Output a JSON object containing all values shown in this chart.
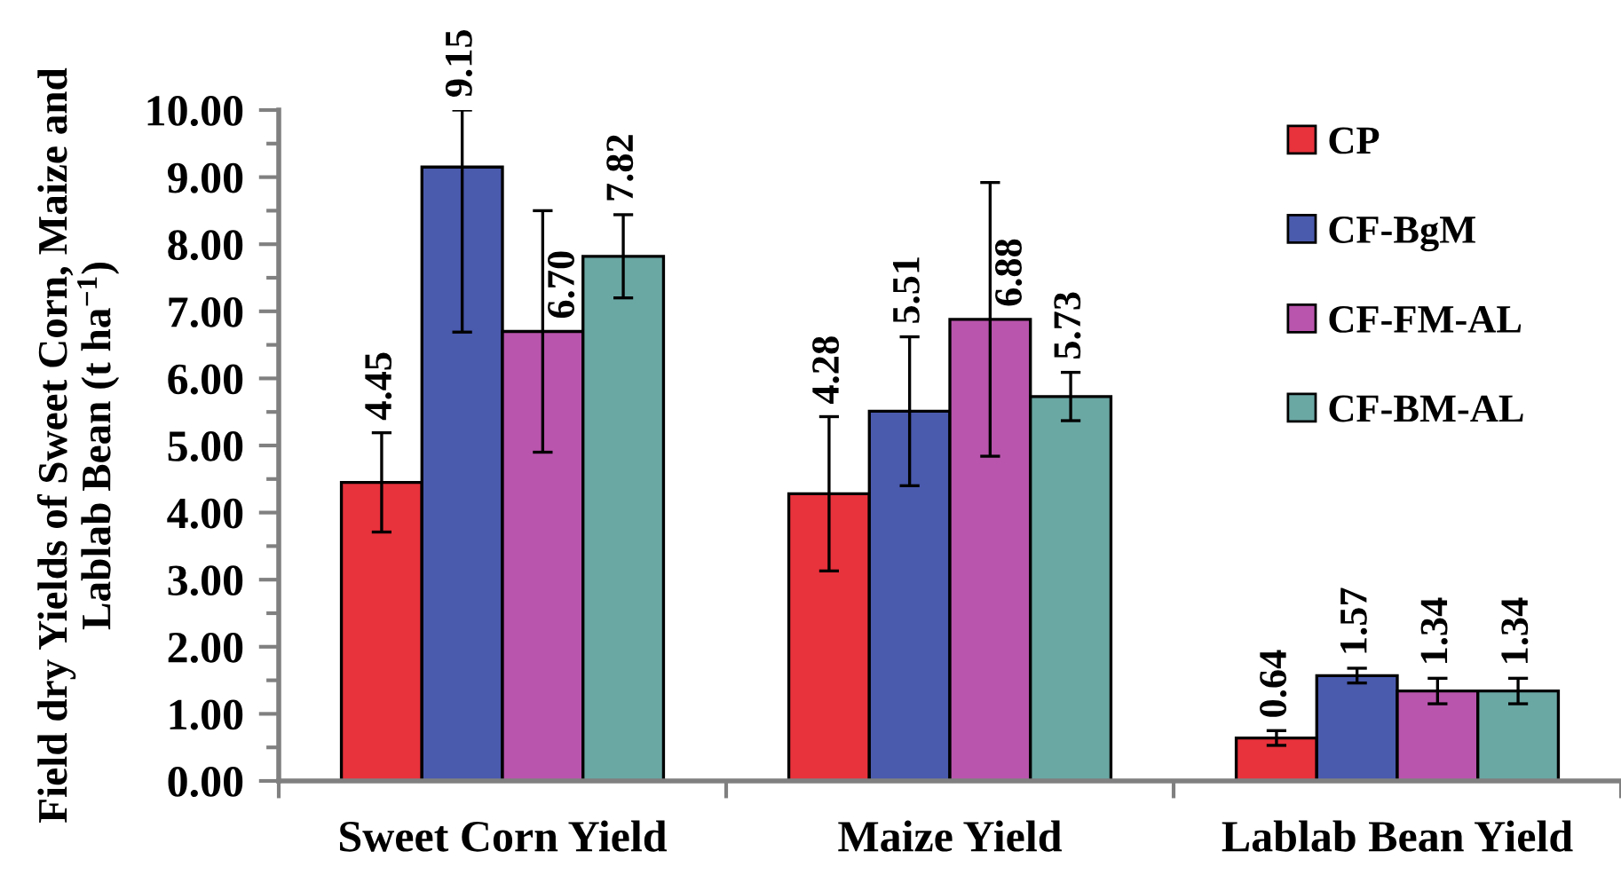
{
  "chart_data": {
    "type": "bar",
    "ylabel": "Field dry Yields of Sweet Corn, Maize and\nLablab Bean (t ha$^{−1}$)",
    "categories": [
      "Sweet Corn Yield",
      "Maize Yield",
      "Lablab Bean Yield"
    ],
    "series": [
      {
        "name": "CP",
        "color": "#e8323c",
        "values": [
          4.45,
          4.28,
          0.64
        ],
        "errors": [
          0.74,
          1.15,
          0.11
        ],
        "value_labels": [
          "4.45",
          "4.28",
          "0.64"
        ]
      },
      {
        "name": "CF-BgM",
        "color": "#4a5aad",
        "values": [
          9.15,
          5.51,
          1.57
        ],
        "errors": [
          [
            6.69,
            10.0
          ],
          1.11,
          0.11
        ],
        "value_labels": [
          "9.15",
          "5.51",
          "1.57"
        ]
      },
      {
        "name": "CF-FM-AL",
        "color": "#b955ad",
        "values": [
          6.7,
          6.88,
          1.34
        ],
        "errors": [
          1.8,
          2.04,
          0.19
        ],
        "value_labels": [
          "6.70",
          "6.88",
          "1.34"
        ]
      },
      {
        "name": "CF-BM-AL",
        "color": "#6aa8a4",
        "values": [
          7.82,
          5.73,
          1.34
        ],
        "errors": [
          0.62,
          0.36,
          0.19
        ],
        "value_labels": [
          "7.82",
          "5.73",
          "1.34"
        ]
      }
    ],
    "ylim": [
      0,
      10
    ],
    "yticks": [
      {
        "value": 0,
        "label": "0.00"
      },
      {
        "value": 0.5,
        "label": null
      },
      {
        "value": 1,
        "label": "1.00"
      },
      {
        "value": 1.5,
        "label": null
      },
      {
        "value": 2,
        "label": "2.00"
      },
      {
        "value": 2.5,
        "label": null
      },
      {
        "value": 3,
        "label": "3.00"
      },
      {
        "value": 3.5,
        "label": null
      },
      {
        "value": 4,
        "label": "4.00"
      },
      {
        "value": 4.5,
        "label": null
      },
      {
        "value": 5,
        "label": "5.00"
      },
      {
        "value": 5.5,
        "label": null
      },
      {
        "value": 6,
        "label": "6.00"
      },
      {
        "value": 6.5,
        "label": null
      },
      {
        "value": 7,
        "label": "7.00"
      },
      {
        "value": 7.5,
        "label": null
      },
      {
        "value": 8,
        "label": "8.00"
      },
      {
        "value": 8.5,
        "label": null
      },
      {
        "value": 9,
        "label": "9.00"
      },
      {
        "value": 9.5,
        "label": null
      },
      {
        "value": 10,
        "label": "10.00"
      }
    ],
    "legend": "top right"
  }
}
